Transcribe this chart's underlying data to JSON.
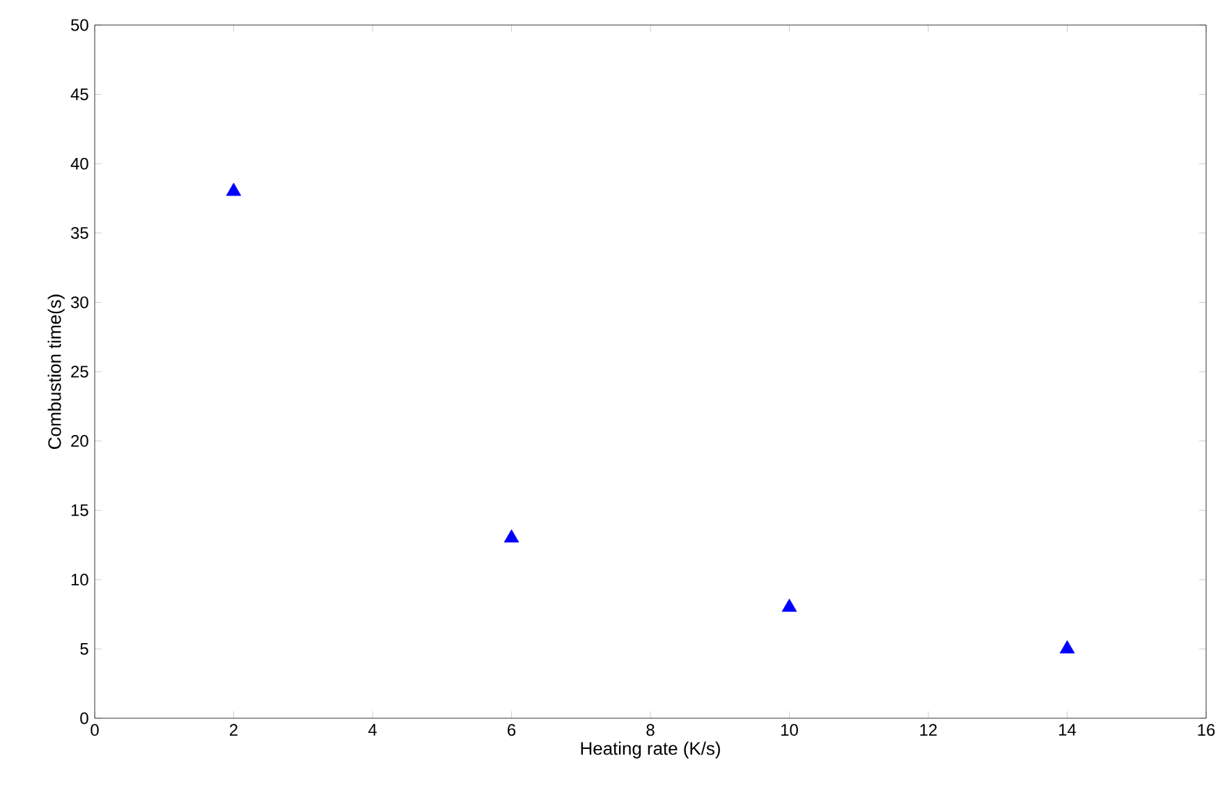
{
  "chart_data": {
    "type": "scatter",
    "xlabel": "Heating rate (K/s)",
    "ylabel": "Combustion time(s)",
    "x": [
      2,
      6,
      10,
      14
    ],
    "values": [
      38,
      13,
      8,
      5
    ],
    "color": "#0000ff",
    "marker": "triangle",
    "xlim": [
      0,
      16
    ],
    "xticks": [
      0,
      2,
      4,
      6,
      8,
      10,
      12,
      14,
      16
    ],
    "ylim": [
      0,
      50
    ],
    "yticks": [
      0,
      5,
      10,
      15,
      20,
      25,
      30,
      35,
      40,
      45,
      50
    ]
  }
}
